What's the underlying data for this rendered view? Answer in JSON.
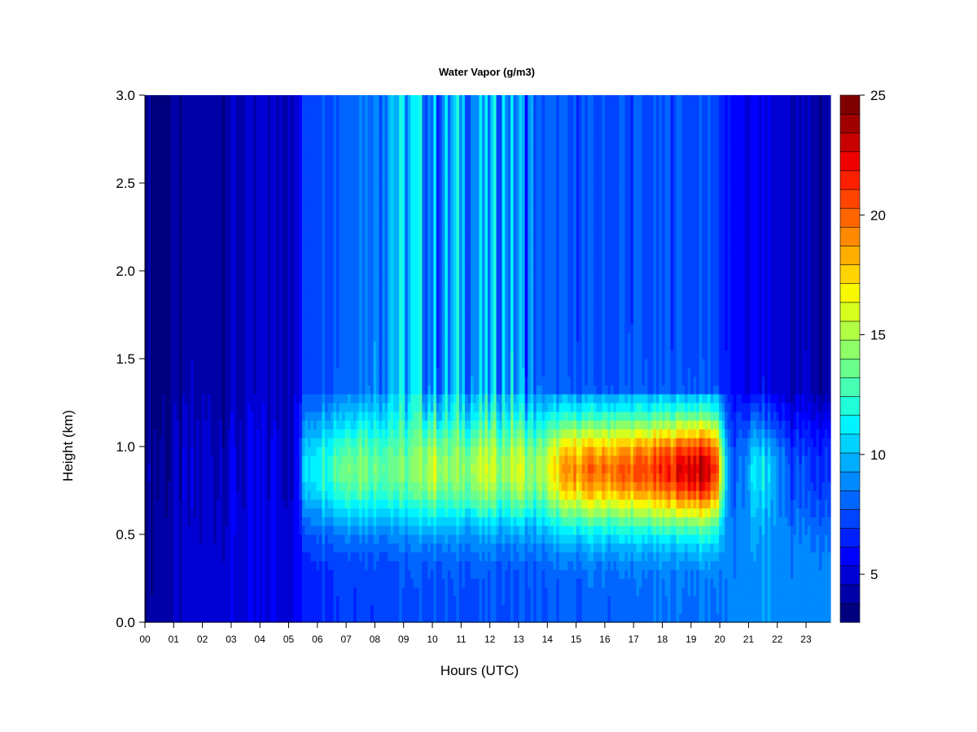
{
  "chart_data": {
    "type": "heatmap",
    "title": "Water Vapor (g/m3)",
    "xlabel": "Hours (UTC)",
    "ylabel": "Height (km)",
    "xlim": [
      0,
      23.85
    ],
    "ylim": [
      0,
      3.0
    ],
    "x_ticks": [
      "00",
      "01",
      "02",
      "03",
      "04",
      "05",
      "06",
      "07",
      "08",
      "09",
      "10",
      "11",
      "12",
      "13",
      "14",
      "15",
      "16",
      "17",
      "18",
      "19",
      "20",
      "21",
      "22",
      "23"
    ],
    "y_ticks": [
      "0.0",
      "0.5",
      "1.0",
      "1.5",
      "2.0",
      "2.5",
      "3.0"
    ],
    "colorbar": {
      "range": [
        3,
        25
      ],
      "ticks": [
        "5",
        "10",
        "15",
        "20",
        "25"
      ],
      "levels": 22,
      "colors": [
        "#00007f",
        "#0000a8",
        "#0000d4",
        "#0000ff",
        "#0020ff",
        "#0044ff",
        "#0066ff",
        "#008aff",
        "#00aeff",
        "#00d2ff",
        "#00f4ff",
        "#20ffd8",
        "#46ffb2",
        "#6aff8c",
        "#8eff68",
        "#b2ff44",
        "#d6ff20",
        "#f8f800",
        "#ffd400",
        "#ffae00",
        "#ff8a00",
        "#ff6600",
        "#ff4400",
        "#ff2000",
        "#f00000",
        "#c80000",
        "#a00000",
        "#7f0000"
      ]
    },
    "hours": [
      0,
      0.5,
      1,
      1.5,
      2,
      2.5,
      3,
      3.5,
      4,
      4.5,
      5,
      5.3,
      5.6,
      6,
      6.5,
      7,
      7.5,
      8,
      8.5,
      9,
      9.5,
      10,
      10.5,
      11,
      11.5,
      12,
      12.5,
      13,
      13.5,
      14,
      14.5,
      15,
      15.5,
      16,
      16.5,
      17,
      17.5,
      18,
      18.5,
      19,
      19.5,
      19.9,
      20.3,
      20.7,
      21,
      21.5,
      22,
      22.5,
      23,
      23.5,
      23.85
    ],
    "peak_values": [
      3.5,
      4.0,
      4.2,
      4.5,
      4.7,
      4.8,
      5.0,
      5.0,
      5.0,
      5.1,
      5.2,
      5.3,
      11,
      12,
      13,
      14,
      14.5,
      13.5,
      14,
      13.5,
      14,
      16,
      14,
      14.5,
      15,
      15.5,
      14.5,
      16,
      14,
      15.5,
      18,
      19,
      19.5,
      19.5,
      20,
      20,
      20.5,
      21,
      22,
      23,
      23,
      21,
      8,
      7.5,
      10,
      11,
      9,
      7.5,
      7,
      7,
      7
    ],
    "surface_values": [
      4.0,
      4.3,
      4.5,
      4.7,
      4.8,
      5.0,
      5.1,
      5.2,
      5.2,
      5.3,
      5.3,
      5.4,
      6.5,
      7,
      7,
      7.2,
      7.2,
      7.3,
      7.3,
      7.4,
      7.4,
      7.5,
      7.5,
      7.5,
      7.6,
      7.6,
      7.5,
      7.5,
      7.6,
      7.7,
      7.8,
      7.8,
      8,
      8,
      8,
      8.1,
      8.1,
      8.2,
      8.3,
      8.3,
      8.4,
      8.4,
      8.6,
      8.8,
      8.8,
      9,
      9,
      8.9,
      8.9,
      8.8,
      8.8
    ],
    "top_values": [
      3.2,
      3.5,
      3.8,
      4.0,
      4.2,
      4.3,
      4.4,
      4.5,
      4.6,
      4.7,
      4.8,
      5.0,
      7.5,
      7.5,
      8,
      8,
      8.5,
      9,
      10.5,
      9.5,
      10,
      9,
      9,
      10,
      9,
      9,
      10,
      9,
      8,
      8,
      7.5,
      7.5,
      7.5,
      7.5,
      7.5,
      7.5,
      7.5,
      7.5,
      7.5,
      7.5,
      7.5,
      7.5,
      6,
      5.5,
      5.5,
      5.5,
      5,
      4.5,
      4.5,
      4,
      4
    ],
    "moist_layer_center_km": 0.87,
    "moist_layer_halfwidth_km": 0.32
  }
}
